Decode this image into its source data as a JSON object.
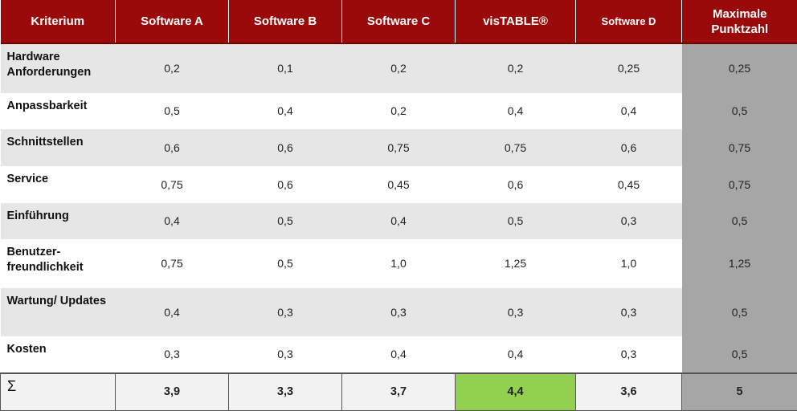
{
  "columns": [
    "Kriterium",
    "Software A",
    "Software B",
    "Software C",
    "visTABLE®",
    "Software D",
    "Maximale Punktzahl"
  ],
  "rows": [
    {
      "label": "Hardware Anforderungen",
      "values": [
        "0,2",
        "0,1",
        "0,2",
        "0,2",
        "0,25",
        "0,25"
      ]
    },
    {
      "label": "Anpassbarkeit",
      "values": [
        "0,5",
        "0,4",
        "0,2",
        "0,4",
        "0,4",
        "0,5"
      ]
    },
    {
      "label": "Schnittstellen",
      "values": [
        "0,6",
        "0,6",
        "0,75",
        "0,75",
        "0,6",
        "0,75"
      ]
    },
    {
      "label": "Service",
      "values": [
        "0,75",
        "0,6",
        "0,45",
        "0,6",
        "0,45",
        "0,75"
      ]
    },
    {
      "label": "Einführung",
      "values": [
        "0,4",
        "0,5",
        "0,4",
        "0,5",
        "0,3",
        "0,5"
      ]
    },
    {
      "label": "Benutzer-freundlichkeit",
      "values": [
        "0,75",
        "0,5",
        "1,0",
        "1,25",
        "1,0",
        "1,25"
      ]
    },
    {
      "label": "Wartung/ Updates",
      "values": [
        "0,4",
        "0,3",
        "0,3",
        "0,3",
        "0,3",
        "0,5"
      ]
    },
    {
      "label": "Kosten",
      "values": [
        "0,3",
        "0,3",
        "0,4",
        "0,4",
        "0,3",
        "0,5"
      ]
    }
  ],
  "sum": {
    "label": "Σ",
    "values": [
      "3,9",
      "3,3",
      "3,7",
      "4,4",
      "3,6",
      "5"
    ]
  },
  "colors": {
    "header_bg": "#9b0a0a",
    "header_text": "#ffffff",
    "row_alt_bg": "#e6e6e6",
    "max_column_bg": "#a6a6a6",
    "winner_bg": "#92d050"
  }
}
